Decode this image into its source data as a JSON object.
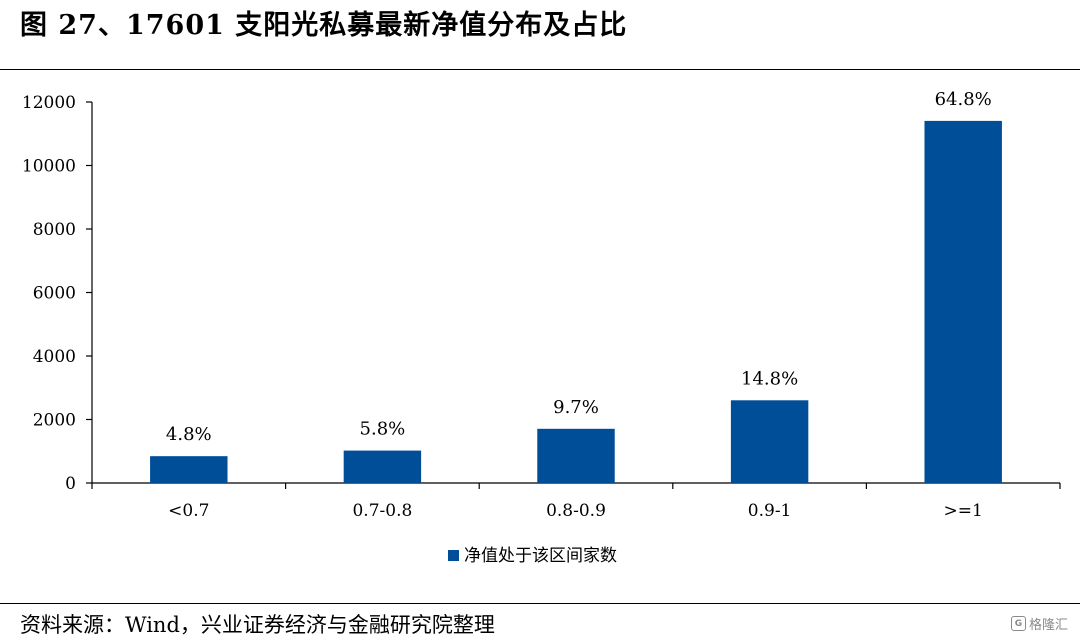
{
  "title": "图 27、17601 支阳光私募最新净值分布及占比",
  "source": "资料来源：Wind，兴业证券经济与金融研究院整理",
  "watermark": {
    "icon": "gelonghui-logo-icon",
    "text": "格隆汇"
  },
  "chart_data": {
    "type": "bar",
    "title": "",
    "xlabel": "",
    "ylabel": "",
    "categories": [
      "<0.7",
      "0.7-0.8",
      "0.8-0.9",
      "0.9-1",
      ">=1"
    ],
    "series": [
      {
        "name": "净值处于该区间家数",
        "values": [
          845,
          1021,
          1707,
          2605,
          11405
        ],
        "data_labels": [
          "4.8%",
          "5.8%",
          "9.7%",
          "14.8%",
          "64.8%"
        ]
      }
    ],
    "ylim": [
      0,
      12000
    ],
    "yticks": [
      0,
      2000,
      4000,
      6000,
      8000,
      10000,
      12000
    ],
    "grid": false,
    "legend": "bottom-center",
    "colors": {
      "bar": "#004e98"
    }
  }
}
